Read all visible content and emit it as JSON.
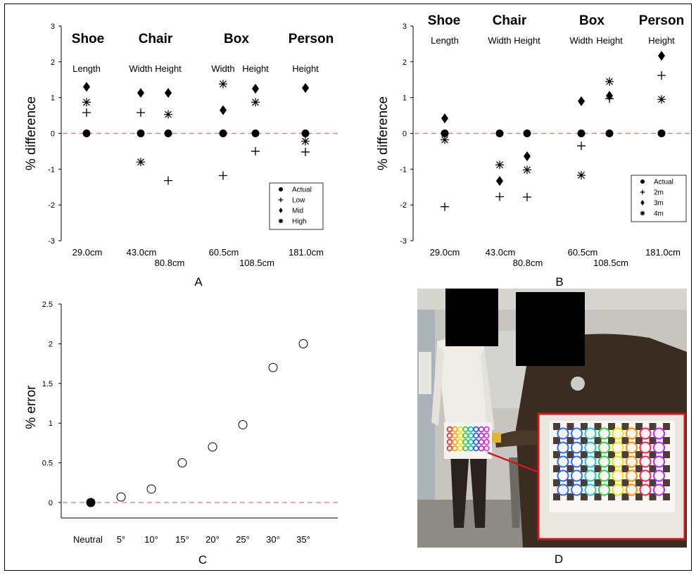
{
  "chart_data": [
    {
      "type": "scatter",
      "panel": "A",
      "ylabel": "% difference",
      "ylim": [
        -3,
        3
      ],
      "yticks": [
        -3,
        -2,
        -1,
        0,
        1,
        2,
        3
      ],
      "groups": [
        {
          "title": "Shoe",
          "dims": [
            {
              "label": "Length",
              "size": "29.0cm"
            }
          ]
        },
        {
          "title": "Chair",
          "dims": [
            {
              "label": "Width",
              "size": "43.0cm"
            },
            {
              "label": "Height",
              "size": "80.8cm"
            }
          ]
        },
        {
          "title": "Box",
          "dims": [
            {
              "label": "Width",
              "size": "60.5cm"
            },
            {
              "label": "Height",
              "size": "108.5cm"
            }
          ]
        },
        {
          "title": "Person",
          "dims": [
            {
              "label": "Height",
              "size": "181.0cm"
            }
          ]
        }
      ],
      "series": [
        {
          "name": "Actual",
          "marker": "circle",
          "values": [
            0,
            0,
            0,
            0,
            0,
            0
          ]
        },
        {
          "name": "Low",
          "marker": "plus",
          "values": [
            0.58,
            0.58,
            -1.32,
            -1.18,
            -0.5,
            -0.52
          ]
        },
        {
          "name": "Mid",
          "marker": "diamond",
          "values": [
            1.3,
            1.13,
            1.13,
            0.65,
            1.25,
            1.27
          ]
        },
        {
          "name": "High",
          "marker": "asterisk",
          "values": [
            0.87,
            -0.8,
            0.53,
            1.38,
            0.87,
            -0.22
          ]
        }
      ],
      "legend": "bottom-right",
      "baseline": 0,
      "letter": "A"
    },
    {
      "type": "scatter",
      "panel": "B",
      "ylabel": "% difference",
      "ylim": [
        -3,
        3
      ],
      "yticks": [
        -3,
        -2,
        -1,
        0,
        1,
        2,
        3
      ],
      "groups": [
        {
          "title": "Shoe",
          "dims": [
            {
              "label": "Length",
              "size": "29.0cm"
            }
          ]
        },
        {
          "title": "Chair",
          "dims": [
            {
              "label": "Width",
              "size": "43.0cm"
            },
            {
              "label": "Height",
              "size": "80.8cm"
            }
          ]
        },
        {
          "title": "Box",
          "dims": [
            {
              "label": "Width",
              "size": "60.5cm"
            },
            {
              "label": "Height",
              "size": "108.5cm"
            }
          ]
        },
        {
          "title": "Person",
          "dims": [
            {
              "label": "Height",
              "size": "181.0cm"
            }
          ]
        }
      ],
      "series": [
        {
          "name": "Actual",
          "marker": "circle",
          "values": [
            0,
            0,
            0,
            0,
            0,
            0
          ]
        },
        {
          "name": "2m",
          "marker": "plus",
          "values": [
            -2.05,
            -1.77,
            -1.78,
            -0.35,
            0.97,
            1.62
          ]
        },
        {
          "name": "3m",
          "marker": "diamond",
          "values": [
            0.42,
            -1.33,
            -0.64,
            0.9,
            1.05,
            2.17
          ]
        },
        {
          "name": "4m",
          "marker": "asterisk",
          "values": [
            -0.18,
            -0.88,
            -1.02,
            -1.17,
            1.45,
            0.95
          ]
        }
      ],
      "legend": "bottom-right",
      "baseline": 0,
      "letter": "B"
    },
    {
      "type": "scatter",
      "panel": "C",
      "ylabel": "% error",
      "ylim": [
        0,
        2.5
      ],
      "yticks": [
        0,
        0.5,
        1,
        1.5,
        2,
        2.5
      ],
      "categories": [
        "Neutral",
        "5°",
        "10°",
        "15°",
        "20°",
        "25°",
        "30°",
        "35°"
      ],
      "values": [
        0,
        0.07,
        0.17,
        0.5,
        0.7,
        0.98,
        1.7,
        2.0
      ],
      "baseline": 0,
      "letter": "C"
    }
  ],
  "photo": {
    "letter": "D",
    "description_colors": {
      "frame": "#d01818",
      "wall": "#c9c8c3",
      "jacket": "#3a2c20",
      "blouse": "#eeeae6"
    }
  },
  "colors": {
    "baseline": "#f07070",
    "axis": "#000000"
  }
}
